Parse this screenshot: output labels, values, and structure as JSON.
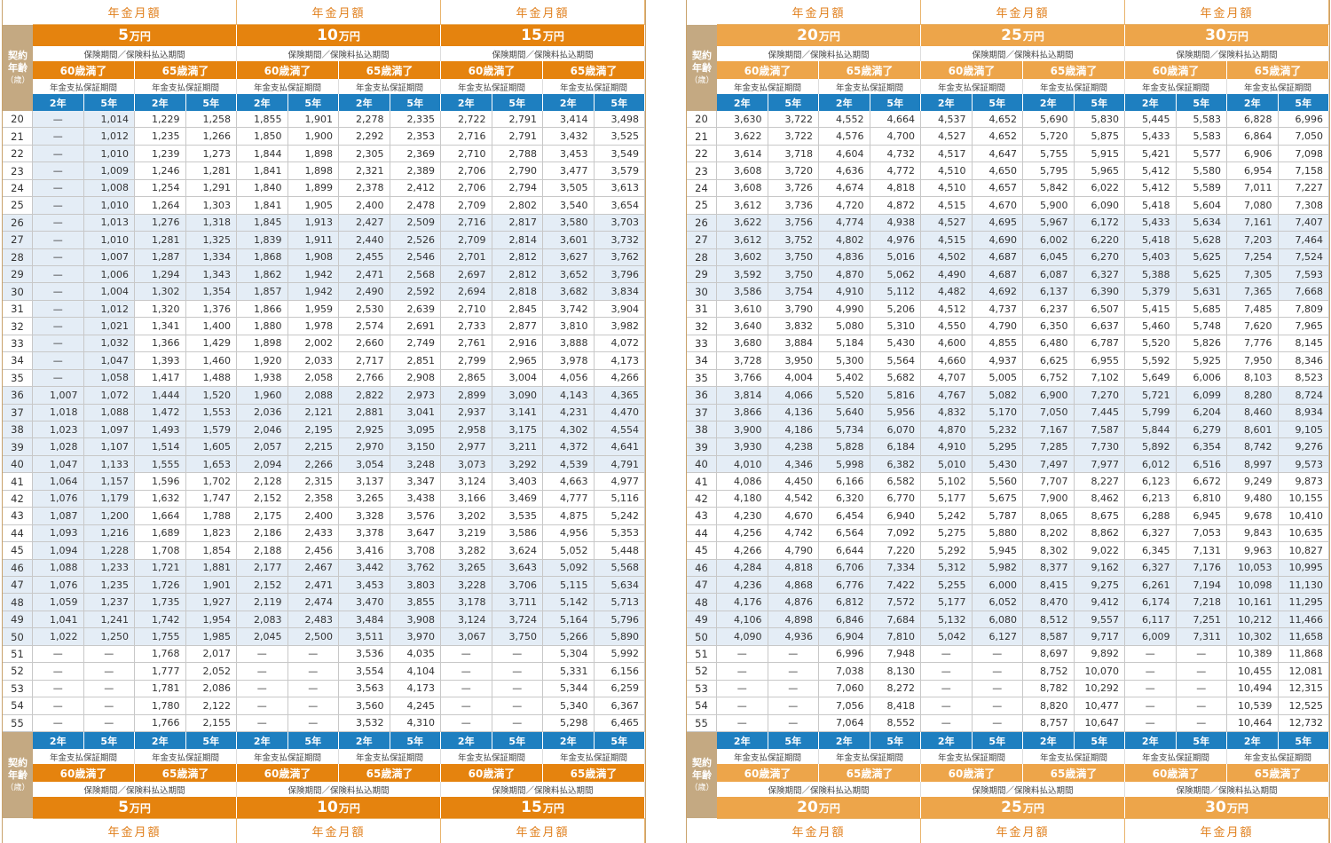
{
  "labels": {
    "section_label": "年金月額",
    "age_head_line1": "契約",
    "age_head_line2": "年齢",
    "age_head_unit": "（歳）",
    "period_label": "保険期間／保険料払込期間",
    "guarantee_label": "年金支払保証期間",
    "band_60": "60歳満了",
    "band_65": "65歳満了",
    "yr2": "2年",
    "yr5": "5年",
    "unit": "万円"
  },
  "left_amounts": [
    "5",
    "10",
    "15"
  ],
  "right_amounts": [
    "20",
    "25",
    "30"
  ],
  "ages": [
    "20",
    "21",
    "22",
    "23",
    "24",
    "25",
    "26",
    "27",
    "28",
    "29",
    "30",
    "31",
    "32",
    "33",
    "34",
    "35",
    "36",
    "37",
    "38",
    "39",
    "40",
    "41",
    "42",
    "43",
    "44",
    "45",
    "46",
    "47",
    "48",
    "49",
    "50",
    "51",
    "52",
    "53",
    "54",
    "55"
  ],
  "left_rows": [
    [
      "—",
      "1,014",
      "1,229",
      "1,258",
      "1,855",
      "1,901",
      "2,278",
      "2,335",
      "2,722",
      "2,791",
      "3,414",
      "3,498"
    ],
    [
      "—",
      "1,012",
      "1,235",
      "1,266",
      "1,850",
      "1,900",
      "2,292",
      "2,353",
      "2,716",
      "2,791",
      "3,432",
      "3,525"
    ],
    [
      "—",
      "1,010",
      "1,239",
      "1,273",
      "1,844",
      "1,898",
      "2,305",
      "2,369",
      "2,710",
      "2,788",
      "3,453",
      "3,549"
    ],
    [
      "—",
      "1,009",
      "1,246",
      "1,281",
      "1,841",
      "1,898",
      "2,321",
      "2,389",
      "2,706",
      "2,790",
      "3,477",
      "3,579"
    ],
    [
      "—",
      "1,008",
      "1,254",
      "1,291",
      "1,840",
      "1,899",
      "2,378",
      "2,412",
      "2,706",
      "2,794",
      "3,505",
      "3,613"
    ],
    [
      "—",
      "1,010",
      "1,264",
      "1,303",
      "1,841",
      "1,905",
      "2,400",
      "2,478",
      "2,709",
      "2,802",
      "3,540",
      "3,654"
    ],
    [
      "—",
      "1,013",
      "1,276",
      "1,318",
      "1,845",
      "1,913",
      "2,427",
      "2,509",
      "2,716",
      "2,817",
      "3,580",
      "3,703"
    ],
    [
      "—",
      "1,010",
      "1,281",
      "1,325",
      "1,839",
      "1,911",
      "2,440",
      "2,526",
      "2,709",
      "2,814",
      "3,601",
      "3,732"
    ],
    [
      "—",
      "1,007",
      "1,287",
      "1,334",
      "1,868",
      "1,908",
      "2,455",
      "2,546",
      "2,701",
      "2,812",
      "3,627",
      "3,762"
    ],
    [
      "—",
      "1,006",
      "1,294",
      "1,343",
      "1,862",
      "1,942",
      "2,471",
      "2,568",
      "2,697",
      "2,812",
      "3,652",
      "3,796"
    ],
    [
      "—",
      "1,004",
      "1,302",
      "1,354",
      "1,857",
      "1,942",
      "2,490",
      "2,592",
      "2,694",
      "2,818",
      "3,682",
      "3,834"
    ],
    [
      "—",
      "1,012",
      "1,320",
      "1,376",
      "1,866",
      "1,959",
      "2,530",
      "2,639",
      "2,710",
      "2,845",
      "3,742",
      "3,904"
    ],
    [
      "—",
      "1,021",
      "1,341",
      "1,400",
      "1,880",
      "1,978",
      "2,574",
      "2,691",
      "2,733",
      "2,877",
      "3,810",
      "3,982"
    ],
    [
      "—",
      "1,032",
      "1,366",
      "1,429",
      "1,898",
      "2,002",
      "2,660",
      "2,749",
      "2,761",
      "2,916",
      "3,888",
      "4,072"
    ],
    [
      "—",
      "1,047",
      "1,393",
      "1,460",
      "1,920",
      "2,033",
      "2,717",
      "2,851",
      "2,799",
      "2,965",
      "3,978",
      "4,173"
    ],
    [
      "—",
      "1,058",
      "1,417",
      "1,488",
      "1,938",
      "2,058",
      "2,766",
      "2,908",
      "2,865",
      "3,004",
      "4,056",
      "4,266"
    ],
    [
      "1,007",
      "1,072",
      "1,444",
      "1,520",
      "1,960",
      "2,088",
      "2,822",
      "2,973",
      "2,899",
      "3,090",
      "4,143",
      "4,365"
    ],
    [
      "1,018",
      "1,088",
      "1,472",
      "1,553",
      "2,036",
      "2,121",
      "2,881",
      "3,041",
      "2,937",
      "3,141",
      "4,231",
      "4,470"
    ],
    [
      "1,023",
      "1,097",
      "1,493",
      "1,579",
      "2,046",
      "2,195",
      "2,925",
      "3,095",
      "2,958",
      "3,175",
      "4,302",
      "4,554"
    ],
    [
      "1,028",
      "1,107",
      "1,514",
      "1,605",
      "2,057",
      "2,215",
      "2,970",
      "3,150",
      "2,977",
      "3,211",
      "4,372",
      "4,641"
    ],
    [
      "1,047",
      "1,133",
      "1,555",
      "1,653",
      "2,094",
      "2,266",
      "3,054",
      "3,248",
      "3,073",
      "3,292",
      "4,539",
      "4,791"
    ],
    [
      "1,064",
      "1,157",
      "1,596",
      "1,702",
      "2,128",
      "2,315",
      "3,137",
      "3,347",
      "3,124",
      "3,403",
      "4,663",
      "4,977"
    ],
    [
      "1,076",
      "1,179",
      "1,632",
      "1,747",
      "2,152",
      "2,358",
      "3,265",
      "3,438",
      "3,166",
      "3,469",
      "4,777",
      "5,116"
    ],
    [
      "1,087",
      "1,200",
      "1,664",
      "1,788",
      "2,175",
      "2,400",
      "3,328",
      "3,576",
      "3,202",
      "3,535",
      "4,875",
      "5,242"
    ],
    [
      "1,093",
      "1,216",
      "1,689",
      "1,823",
      "2,186",
      "2,433",
      "3,378",
      "3,647",
      "3,219",
      "3,586",
      "4,956",
      "5,353"
    ],
    [
      "1,094",
      "1,228",
      "1,708",
      "1,854",
      "2,188",
      "2,456",
      "3,416",
      "3,708",
      "3,282",
      "3,624",
      "5,052",
      "5,448"
    ],
    [
      "1,088",
      "1,233",
      "1,721",
      "1,881",
      "2,177",
      "2,467",
      "3,442",
      "3,762",
      "3,265",
      "3,643",
      "5,092",
      "5,568"
    ],
    [
      "1,076",
      "1,235",
      "1,726",
      "1,901",
      "2,152",
      "2,471",
      "3,453",
      "3,803",
      "3,228",
      "3,706",
      "5,115",
      "5,634"
    ],
    [
      "1,059",
      "1,237",
      "1,735",
      "1,927",
      "2,119",
      "2,474",
      "3,470",
      "3,855",
      "3,178",
      "3,711",
      "5,142",
      "5,713"
    ],
    [
      "1,041",
      "1,241",
      "1,742",
      "1,954",
      "2,083",
      "2,483",
      "3,484",
      "3,908",
      "3,124",
      "3,724",
      "5,164",
      "5,796"
    ],
    [
      "1,022",
      "1,250",
      "1,755",
      "1,985",
      "2,045",
      "2,500",
      "3,511",
      "3,970",
      "3,067",
      "3,750",
      "5,266",
      "5,890"
    ],
    [
      "—",
      "—",
      "1,768",
      "2,017",
      "—",
      "—",
      "3,536",
      "4,035",
      "—",
      "—",
      "5,304",
      "5,992"
    ],
    [
      "—",
      "—",
      "1,777",
      "2,052",
      "—",
      "—",
      "3,554",
      "4,104",
      "—",
      "—",
      "5,331",
      "6,156"
    ],
    [
      "—",
      "—",
      "1,781",
      "2,086",
      "—",
      "—",
      "3,563",
      "4,173",
      "—",
      "—",
      "5,344",
      "6,259"
    ],
    [
      "—",
      "—",
      "1,780",
      "2,122",
      "—",
      "—",
      "3,560",
      "4,245",
      "—",
      "—",
      "5,340",
      "6,367"
    ],
    [
      "—",
      "—",
      "1,766",
      "2,155",
      "—",
      "—",
      "3,532",
      "4,310",
      "—",
      "—",
      "5,298",
      "6,465"
    ]
  ],
  "right_rows": [
    [
      "3,630",
      "3,722",
      "4,552",
      "4,664",
      "4,537",
      "4,652",
      "5,690",
      "5,830",
      "5,445",
      "5,583",
      "6,828",
      "6,996"
    ],
    [
      "3,622",
      "3,722",
      "4,576",
      "4,700",
      "4,527",
      "4,652",
      "5,720",
      "5,875",
      "5,433",
      "5,583",
      "6,864",
      "7,050"
    ],
    [
      "3,614",
      "3,718",
      "4,604",
      "4,732",
      "4,517",
      "4,647",
      "5,755",
      "5,915",
      "5,421",
      "5,577",
      "6,906",
      "7,098"
    ],
    [
      "3,608",
      "3,720",
      "4,636",
      "4,772",
      "4,510",
      "4,650",
      "5,795",
      "5,965",
      "5,412",
      "5,580",
      "6,954",
      "7,158"
    ],
    [
      "3,608",
      "3,726",
      "4,674",
      "4,818",
      "4,510",
      "4,657",
      "5,842",
      "6,022",
      "5,412",
      "5,589",
      "7,011",
      "7,227"
    ],
    [
      "3,612",
      "3,736",
      "4,720",
      "4,872",
      "4,515",
      "4,670",
      "5,900",
      "6,090",
      "5,418",
      "5,604",
      "7,080",
      "7,308"
    ],
    [
      "3,622",
      "3,756",
      "4,774",
      "4,938",
      "4,527",
      "4,695",
      "5,967",
      "6,172",
      "5,433",
      "5,634",
      "7,161",
      "7,407"
    ],
    [
      "3,612",
      "3,752",
      "4,802",
      "4,976",
      "4,515",
      "4,690",
      "6,002",
      "6,220",
      "5,418",
      "5,628",
      "7,203",
      "7,464"
    ],
    [
      "3,602",
      "3,750",
      "4,836",
      "5,016",
      "4,502",
      "4,687",
      "6,045",
      "6,270",
      "5,403",
      "5,625",
      "7,254",
      "7,524"
    ],
    [
      "3,592",
      "3,750",
      "4,870",
      "5,062",
      "4,490",
      "4,687",
      "6,087",
      "6,327",
      "5,388",
      "5,625",
      "7,305",
      "7,593"
    ],
    [
      "3,586",
      "3,754",
      "4,910",
      "5,112",
      "4,482",
      "4,692",
      "6,137",
      "6,390",
      "5,379",
      "5,631",
      "7,365",
      "7,668"
    ],
    [
      "3,610",
      "3,790",
      "4,990",
      "5,206",
      "4,512",
      "4,737",
      "6,237",
      "6,507",
      "5,415",
      "5,685",
      "7,485",
      "7,809"
    ],
    [
      "3,640",
      "3,832",
      "5,080",
      "5,310",
      "4,550",
      "4,790",
      "6,350",
      "6,637",
      "5,460",
      "5,748",
      "7,620",
      "7,965"
    ],
    [
      "3,680",
      "3,884",
      "5,184",
      "5,430",
      "4,600",
      "4,855",
      "6,480",
      "6,787",
      "5,520",
      "5,826",
      "7,776",
      "8,145"
    ],
    [
      "3,728",
      "3,950",
      "5,300",
      "5,564",
      "4,660",
      "4,937",
      "6,625",
      "6,955",
      "5,592",
      "5,925",
      "7,950",
      "8,346"
    ],
    [
      "3,766",
      "4,004",
      "5,402",
      "5,682",
      "4,707",
      "5,005",
      "6,752",
      "7,102",
      "5,649",
      "6,006",
      "8,103",
      "8,523"
    ],
    [
      "3,814",
      "4,066",
      "5,520",
      "5,816",
      "4,767",
      "5,082",
      "6,900",
      "7,270",
      "5,721",
      "6,099",
      "8,280",
      "8,724"
    ],
    [
      "3,866",
      "4,136",
      "5,640",
      "5,956",
      "4,832",
      "5,170",
      "7,050",
      "7,445",
      "5,799",
      "6,204",
      "8,460",
      "8,934"
    ],
    [
      "3,900",
      "4,186",
      "5,734",
      "6,070",
      "4,870",
      "5,232",
      "7,167",
      "7,587",
      "5,844",
      "6,279",
      "8,601",
      "9,105"
    ],
    [
      "3,930",
      "4,238",
      "5,828",
      "6,184",
      "4,910",
      "5,295",
      "7,285",
      "7,730",
      "5,892",
      "6,354",
      "8,742",
      "9,276"
    ],
    [
      "4,010",
      "4,346",
      "5,998",
      "6,382",
      "5,010",
      "5,430",
      "7,497",
      "7,977",
      "6,012",
      "6,516",
      "8,997",
      "9,573"
    ],
    [
      "4,086",
      "4,450",
      "6,166",
      "6,582",
      "5,102",
      "5,560",
      "7,707",
      "8,227",
      "6,123",
      "6,672",
      "9,249",
      "9,873"
    ],
    [
      "4,180",
      "4,542",
      "6,320",
      "6,770",
      "5,177",
      "5,675",
      "7,900",
      "8,462",
      "6,213",
      "6,810",
      "9,480",
      "10,155"
    ],
    [
      "4,230",
      "4,670",
      "6,454",
      "6,940",
      "5,242",
      "5,787",
      "8,065",
      "8,675",
      "6,288",
      "6,945",
      "9,678",
      "10,410"
    ],
    [
      "4,256",
      "4,742",
      "6,564",
      "7,092",
      "5,275",
      "5,880",
      "8,202",
      "8,862",
      "6,327",
      "7,053",
      "9,843",
      "10,635"
    ],
    [
      "4,266",
      "4,790",
      "6,644",
      "7,220",
      "5,292",
      "5,945",
      "8,302",
      "9,022",
      "6,345",
      "7,131",
      "9,963",
      "10,827"
    ],
    [
      "4,284",
      "4,818",
      "6,706",
      "7,334",
      "5,312",
      "5,982",
      "8,377",
      "9,162",
      "6,327",
      "7,176",
      "10,053",
      "10,995"
    ],
    [
      "4,236",
      "4,868",
      "6,776",
      "7,422",
      "5,255",
      "6,000",
      "8,415",
      "9,275",
      "6,261",
      "7,194",
      "10,098",
      "11,130"
    ],
    [
      "4,176",
      "4,876",
      "6,812",
      "7,572",
      "5,177",
      "6,052",
      "8,470",
      "9,412",
      "6,174",
      "7,218",
      "10,161",
      "11,295"
    ],
    [
      "4,106",
      "4,898",
      "6,846",
      "7,684",
      "5,132",
      "6,080",
      "8,512",
      "9,557",
      "6,117",
      "7,251",
      "10,212",
      "11,466"
    ],
    [
      "4,090",
      "4,936",
      "6,904",
      "7,810",
      "5,042",
      "6,127",
      "8,587",
      "9,717",
      "6,009",
      "7,311",
      "10,302",
      "11,658"
    ],
    [
      "—",
      "—",
      "6,996",
      "7,948",
      "—",
      "—",
      "8,697",
      "9,892",
      "—",
      "—",
      "10,389",
      "11,868"
    ],
    [
      "—",
      "—",
      "7,038",
      "8,130",
      "—",
      "—",
      "8,752",
      "10,070",
      "—",
      "—",
      "10,455",
      "12,081"
    ],
    [
      "—",
      "—",
      "7,060",
      "8,272",
      "—",
      "—",
      "8,782",
      "10,292",
      "—",
      "—",
      "10,494",
      "12,315"
    ],
    [
      "—",
      "—",
      "7,056",
      "8,418",
      "—",
      "—",
      "8,820",
      "10,477",
      "—",
      "—",
      "10,539",
      "12,525"
    ],
    [
      "—",
      "—",
      "7,064",
      "8,552",
      "—",
      "—",
      "8,757",
      "10,647",
      "—",
      "—",
      "10,464",
      "12,732"
    ]
  ],
  "colors": {
    "orange": "#e5830e",
    "light_orange": "#eda54a",
    "blue": "#1e7fc0",
    "tan": "#c4a982",
    "row_tint": "#e4edf6"
  }
}
